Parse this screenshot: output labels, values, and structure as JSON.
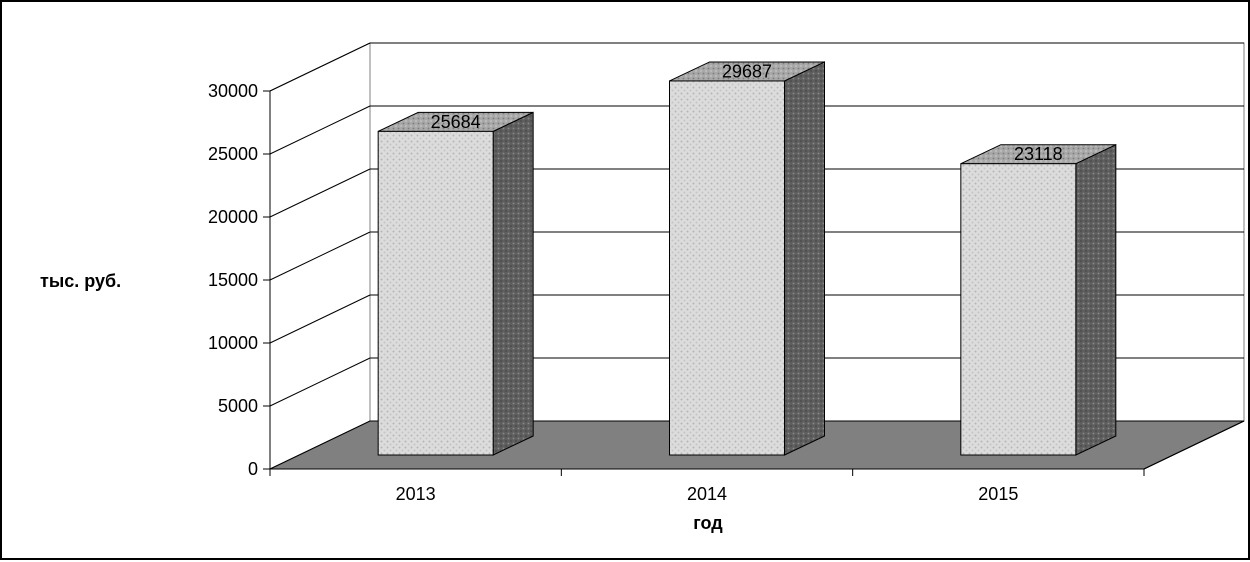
{
  "chart_data": {
    "type": "bar",
    "categories": [
      "2013",
      "2014",
      "2015"
    ],
    "values": [
      25684,
      29687,
      23118
    ],
    "data_labels": [
      "25684",
      "29687",
      "23118"
    ],
    "title": "",
    "xlabel": "год",
    "ylabel": "тыс. руб.",
    "ylim": [
      0,
      30000
    ],
    "yticks": [
      0,
      5000,
      10000,
      15000,
      20000,
      25000,
      30000
    ],
    "ytick_labels": [
      "0",
      "5000",
      "10000",
      "15000",
      "20000",
      "25000",
      "30000"
    ],
    "grid": true,
    "legend": "none",
    "style": "3d-column",
    "colors": {
      "bar_front": "#d9d9d9",
      "bar_side": "#666666",
      "bar_top": "#a6a6a6",
      "floor": "#808080",
      "axis": "#000000"
    }
  }
}
